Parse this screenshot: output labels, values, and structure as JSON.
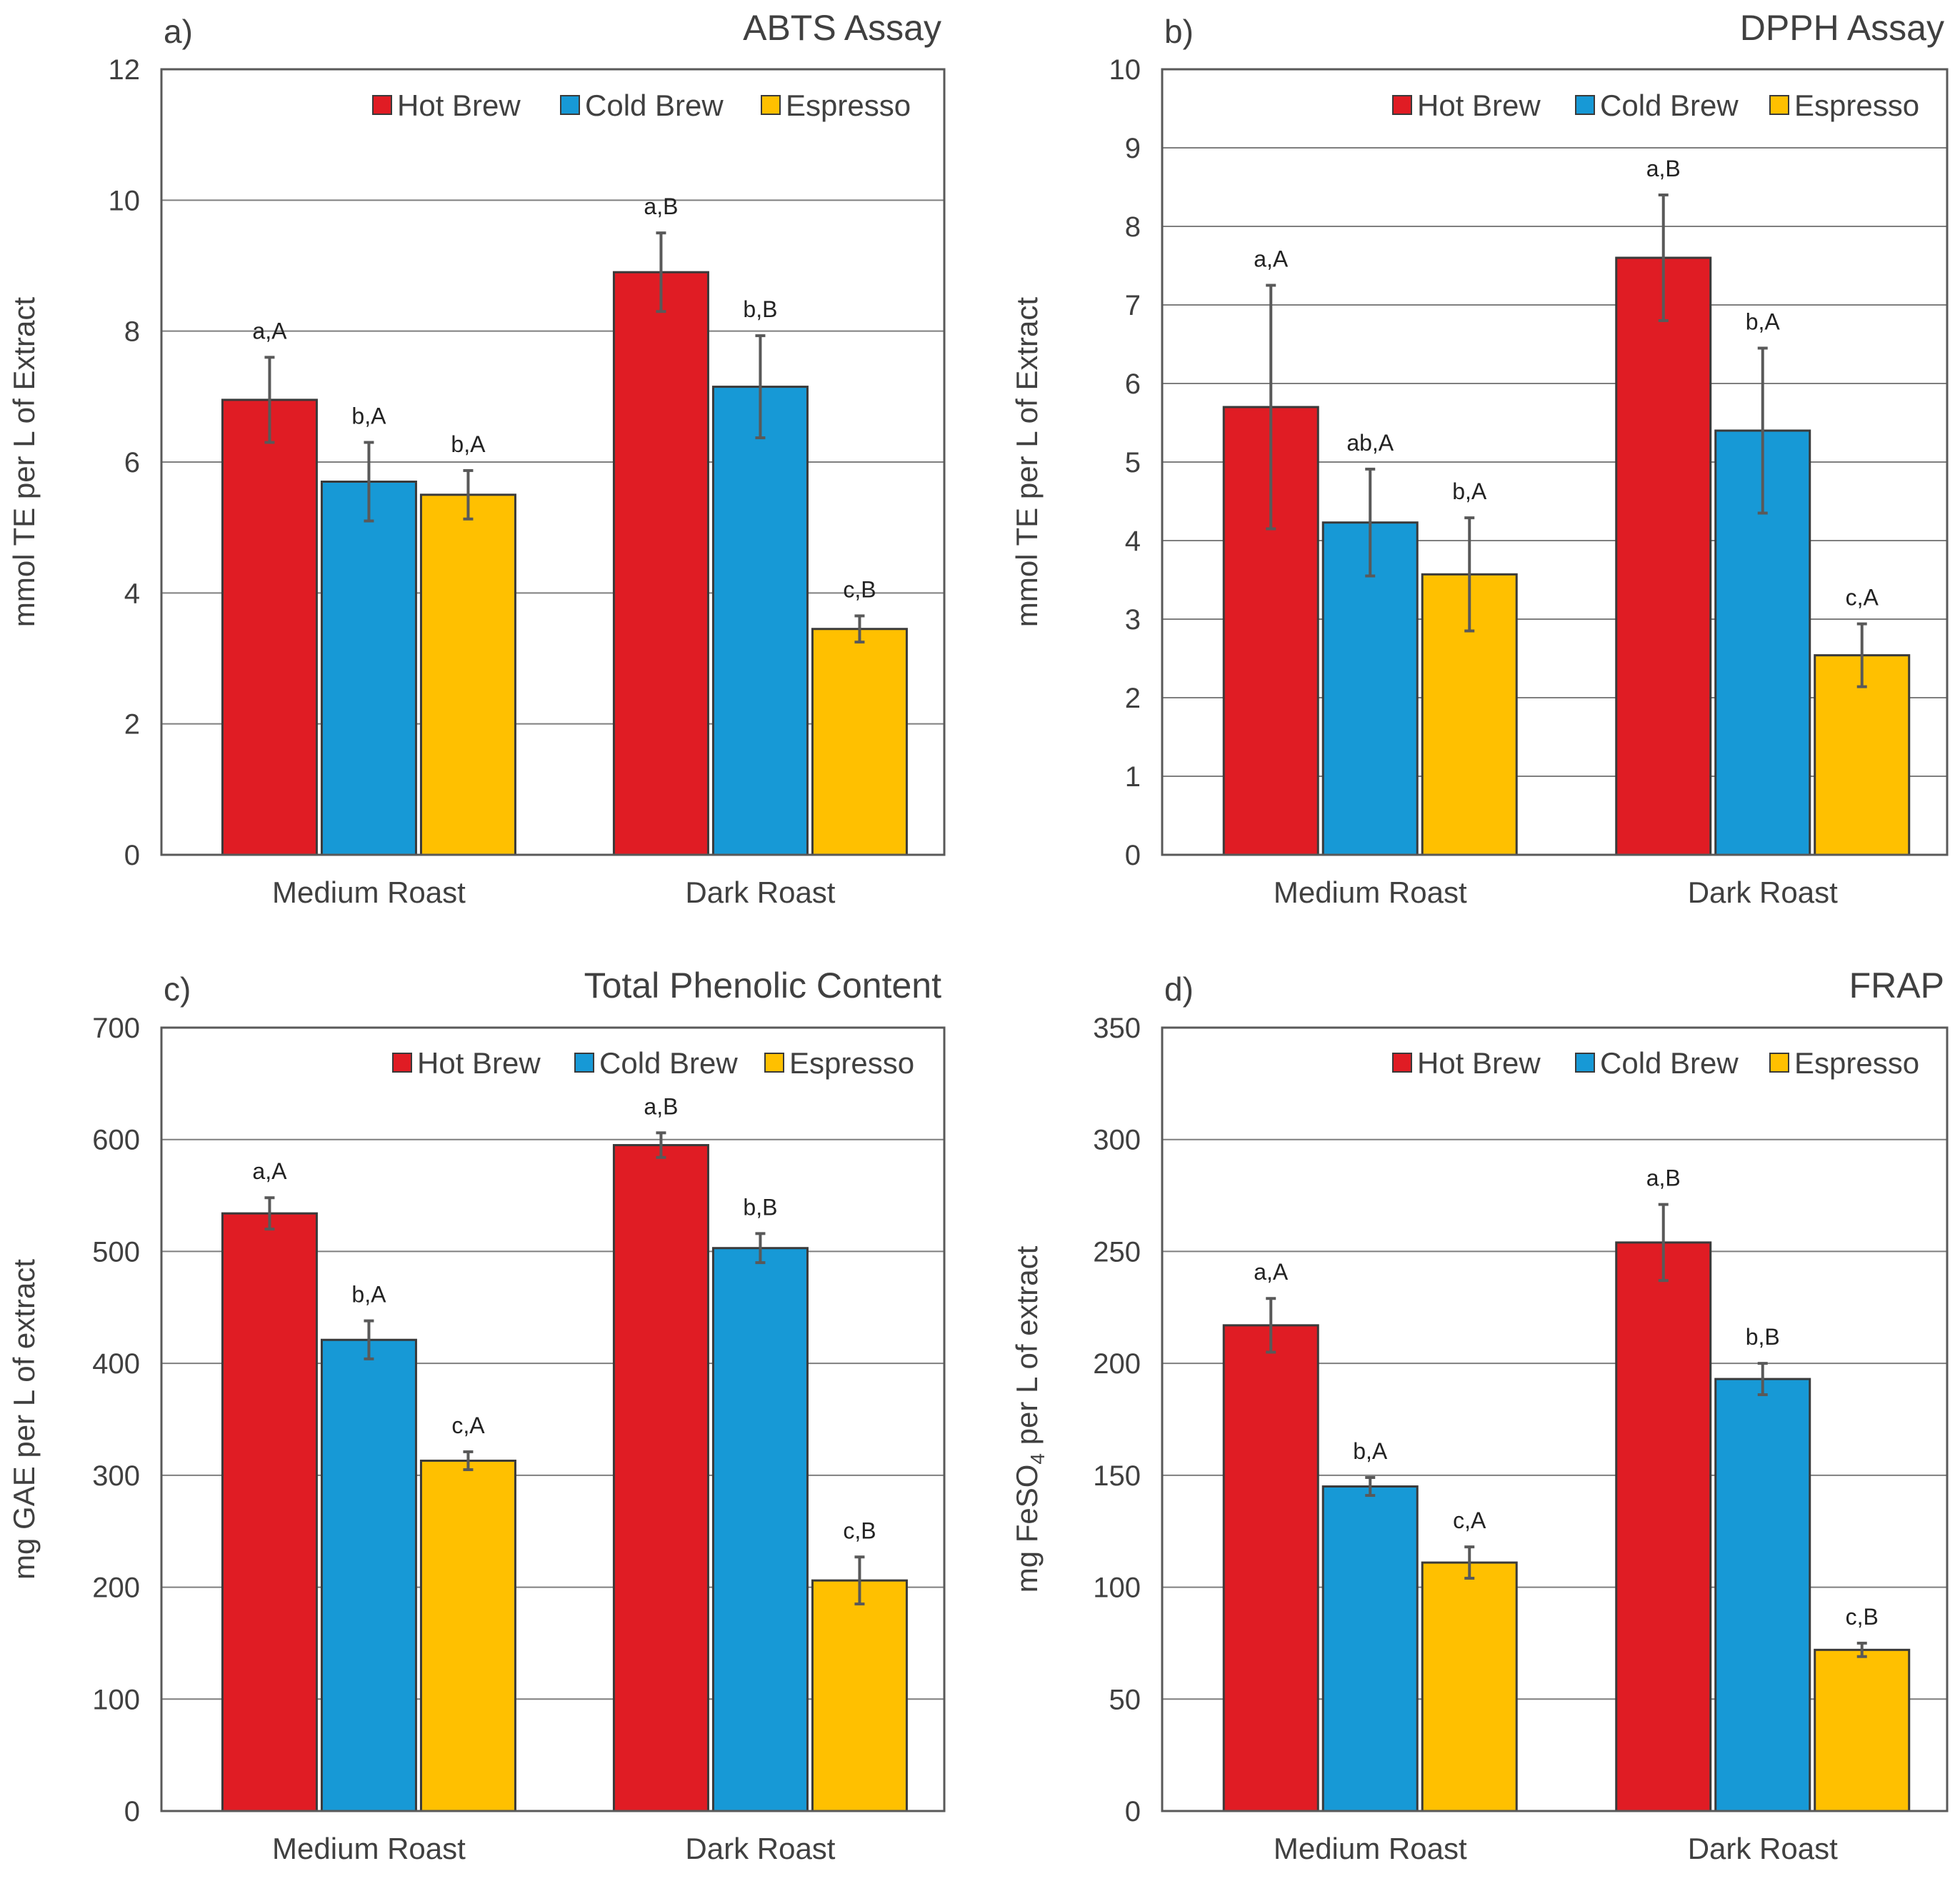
{
  "colors": {
    "hot_brew": "#E01C24",
    "cold_brew": "#1799D6",
    "espresso": "#FFC000",
    "gridline": "#7F7F7F",
    "frame": "#595959",
    "error_bar": "#595959",
    "text": "#404040"
  },
  "chart_data": [
    {
      "type": "bar",
      "panel_letter": "a)",
      "title": "ABTS Assay",
      "ylabel": "mmol TE per L of Extract",
      "ylabel_parts": null,
      "ylim": [
        0,
        12
      ],
      "yticks": [
        0,
        2,
        4,
        6,
        8,
        10,
        12
      ],
      "ytick_labels": [
        "0",
        "2",
        "4",
        "6",
        "8",
        "10",
        "12"
      ],
      "grid": true,
      "legend": "top-right",
      "categories": [
        "Medium Roast",
        "Dark Roast"
      ],
      "series": [
        {
          "name": "Hot Brew",
          "color_key": "hot_brew",
          "values": [
            6.95,
            8.9
          ],
          "errors": [
            0.65,
            0.6
          ],
          "labels": [
            "a,A",
            "a,B"
          ]
        },
        {
          "name": "Cold Brew",
          "color_key": "cold_brew",
          "values": [
            5.7,
            7.15
          ],
          "errors": [
            0.6,
            0.78
          ],
          "labels": [
            "b,A",
            "b,B"
          ]
        },
        {
          "name": "Espresso",
          "color_key": "espresso",
          "values": [
            5.5,
            3.45
          ],
          "errors": [
            0.37,
            0.2
          ],
          "labels": [
            "b,A",
            "c,B"
          ]
        }
      ]
    },
    {
      "type": "bar",
      "panel_letter": "b)",
      "title": "DPPH Assay",
      "ylabel": "mmol TE per L of Extract",
      "ylabel_parts": null,
      "ylim": [
        0,
        10
      ],
      "yticks": [
        0,
        1,
        2,
        3,
        4,
        5,
        6,
        7,
        8,
        9,
        10
      ],
      "ytick_labels": [
        "0",
        "1",
        "2",
        "3",
        "4",
        "5",
        "6",
        "7",
        "8",
        "9",
        "10"
      ],
      "grid": true,
      "legend": "top-right",
      "categories": [
        "Medium Roast",
        "Dark Roast"
      ],
      "series": [
        {
          "name": "Hot Brew",
          "color_key": "hot_brew",
          "values": [
            5.7,
            7.6
          ],
          "errors": [
            1.55,
            0.8
          ],
          "labels": [
            "a,A",
            "a,B"
          ]
        },
        {
          "name": "Cold Brew",
          "color_key": "cold_brew",
          "values": [
            4.23,
            5.4
          ],
          "errors": [
            0.68,
            1.05
          ],
          "labels": [
            "ab,A",
            "b,A"
          ]
        },
        {
          "name": "Espresso",
          "color_key": "espresso",
          "values": [
            3.57,
            2.54
          ],
          "errors": [
            0.72,
            0.4
          ],
          "labels": [
            "b,A",
            "c,A"
          ]
        }
      ]
    },
    {
      "type": "bar",
      "panel_letter": "c)",
      "title": "Total Phenolic Content",
      "ylabel": "mg GAE per L of extract",
      "ylabel_parts": null,
      "ylim": [
        0,
        700
      ],
      "yticks": [
        0,
        100,
        200,
        300,
        400,
        500,
        600,
        700
      ],
      "ytick_labels": [
        "0",
        "100",
        "200",
        "300",
        "400",
        "500",
        "600",
        "700"
      ],
      "grid": true,
      "legend": "top-right",
      "categories": [
        "Medium Roast",
        "Dark Roast"
      ],
      "series": [
        {
          "name": "Hot Brew",
          "color_key": "hot_brew",
          "values": [
            534,
            595
          ],
          "errors": [
            14,
            11
          ],
          "labels": [
            "a,A",
            "a,B"
          ]
        },
        {
          "name": "Cold Brew",
          "color_key": "cold_brew",
          "values": [
            421,
            503
          ],
          "errors": [
            17,
            13
          ],
          "labels": [
            "b,A",
            "b,B"
          ]
        },
        {
          "name": "Espresso",
          "color_key": "espresso",
          "values": [
            313,
            206
          ],
          "errors": [
            8,
            21
          ],
          "labels": [
            "c,A",
            "c,B"
          ]
        }
      ]
    },
    {
      "type": "bar",
      "panel_letter": "d)",
      "title": "FRAP",
      "ylabel": "mg FeSO4 per L of extract",
      "ylabel_parts": {
        "before": "mg FeSO",
        "sub": "4",
        "after": " per L of extract"
      },
      "ylim": [
        0,
        350
      ],
      "yticks": [
        0,
        50,
        100,
        150,
        200,
        250,
        300,
        350
      ],
      "ytick_labels": [
        "0",
        "50",
        "100",
        "150",
        "200",
        "250",
        "300",
        "350"
      ],
      "grid": true,
      "legend": "top-right",
      "categories": [
        "Medium Roast",
        "Dark Roast"
      ],
      "series": [
        {
          "name": "Hot Brew",
          "color_key": "hot_brew",
          "values": [
            217,
            254
          ],
          "errors": [
            12,
            17
          ],
          "labels": [
            "a,A",
            "a,B"
          ]
        },
        {
          "name": "Cold Brew",
          "color_key": "cold_brew",
          "values": [
            145,
            193
          ],
          "errors": [
            4,
            7
          ],
          "labels": [
            "b,A",
            "b,B"
          ]
        },
        {
          "name": "Espresso",
          "color_key": "espresso",
          "values": [
            111,
            72
          ],
          "errors": [
            7,
            3
          ],
          "labels": [
            "c,A",
            "c,B"
          ]
        }
      ]
    }
  ]
}
